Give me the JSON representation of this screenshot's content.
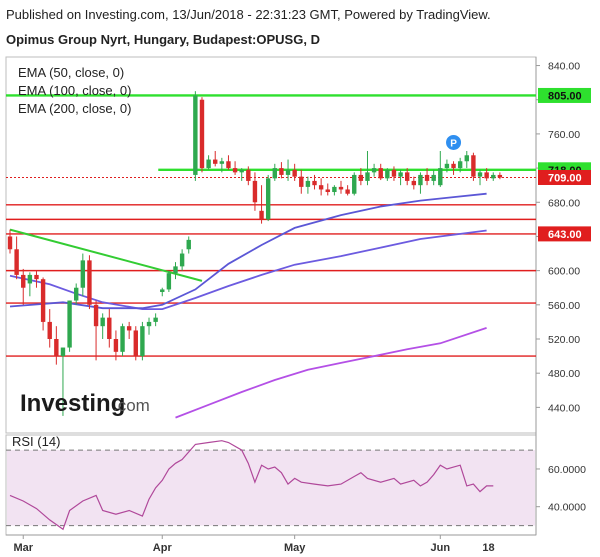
{
  "header": {
    "published": "Published on Investing.com, 13/Jun/2018 - 22:31:23 GMT, Powered by TradingView.",
    "title": "Opimus Group Nyrt, Hungary, Budapest:OPUSG, D"
  },
  "legend": [
    "EMA (50, close, 0)",
    "EMA (100, close, 0)",
    "EMA (200, close, 0)"
  ],
  "logo": {
    "text": "Investing",
    "suffix": ".com"
  },
  "marker": {
    "label": "P"
  },
  "colors": {
    "up": "#2fa84f",
    "down": "#d92b2b",
    "ema50": "#5b57d6",
    "ema100": "#6c5be0",
    "ema200": "#b450e6",
    "hline_green": "#2ee02e",
    "hline_red": "#e01e1e",
    "trend": "#33cc33",
    "rsi": "#b0489a",
    "rsi_fill": "#f2e3f2"
  },
  "chart_data": [
    {
      "type": "candlestick",
      "title": "Opimus Group Nyrt, Hungary, Budapest:OPUSG, D",
      "y_ticks": [
        840,
        800,
        760,
        720,
        680,
        640,
        600,
        560,
        520,
        480,
        440
      ],
      "y_tick_labels": [
        "840.00",
        "",
        "760.00",
        "",
        "680.00",
        "",
        "600.00",
        "560.00",
        "520.00",
        "480.00",
        "440.00"
      ],
      "ylim": [
        410,
        850
      ],
      "x_labels": [
        {
          "label": "Mar",
          "index": 2
        },
        {
          "label": "Apr",
          "index": 23
        },
        {
          "label": "May",
          "index": 43
        },
        {
          "label": "Jun",
          "index": 65
        }
      ],
      "x_range": [
        0,
        75
      ],
      "price_badges": [
        {
          "value": 805,
          "label": "805.00",
          "color": "green"
        },
        {
          "value": 718,
          "label": "718.00",
          "color": "green"
        },
        {
          "value": 709,
          "label": "709.00",
          "color": "red"
        },
        {
          "value": 643,
          "label": "643.00",
          "color": "red"
        }
      ],
      "horizontal_lines": [
        {
          "value": 805,
          "color": "green",
          "from": 0
        },
        {
          "value": 718,
          "color": "green",
          "from": 23
        },
        {
          "value": 677,
          "color": "red",
          "from": 0
        },
        {
          "value": 660,
          "color": "red",
          "from": 0
        },
        {
          "value": 643,
          "color": "red",
          "from": 0
        },
        {
          "value": 600,
          "color": "red",
          "from": 0
        },
        {
          "value": 562,
          "color": "red",
          "from": 0
        },
        {
          "value": 500,
          "color": "red",
          "from": 0
        }
      ],
      "last_price_line": 709,
      "trendline": [
        [
          0,
          648
        ],
        [
          29,
          588
        ]
      ],
      "marker_at": {
        "index": 67,
        "value": 750
      },
      "candles": [
        [
          640,
          648,
          620,
          625
        ],
        [
          625,
          640,
          590,
          595
        ],
        [
          595,
          602,
          560,
          580
        ],
        [
          585,
          598,
          570,
          595
        ],
        [
          595,
          600,
          580,
          590
        ],
        [
          590,
          592,
          530,
          540
        ],
        [
          540,
          555,
          510,
          520
        ],
        [
          520,
          535,
          490,
          500
        ],
        [
          500,
          510,
          430,
          510
        ],
        [
          510,
          565,
          505,
          565
        ],
        [
          565,
          585,
          560,
          580
        ],
        [
          580,
          620,
          570,
          612
        ],
        [
          612,
          618,
          555,
          560
        ],
        [
          560,
          565,
          495,
          535
        ],
        [
          535,
          550,
          520,
          545
        ],
        [
          545,
          555,
          510,
          520
        ],
        [
          520,
          530,
          495,
          505
        ],
        [
          505,
          538,
          500,
          535
        ],
        [
          535,
          540,
          520,
          530
        ],
        [
          530,
          535,
          495,
          500
        ],
        [
          500,
          540,
          495,
          535
        ],
        [
          535,
          545,
          525,
          540
        ],
        [
          540,
          550,
          535,
          545
        ],
        [
          575,
          580,
          570,
          578
        ],
        [
          578,
          600,
          575,
          597
        ],
        [
          597,
          610,
          590,
          605
        ],
        [
          605,
          625,
          600,
          620
        ],
        [
          625,
          640,
          620,
          636
        ],
        [
          712,
          810,
          705,
          805
        ],
        [
          800,
          803,
          715,
          720
        ],
        [
          720,
          735,
          718,
          730
        ],
        [
          730,
          740,
          722,
          725
        ],
        [
          725,
          732,
          715,
          728
        ],
        [
          728,
          735,
          718,
          720
        ],
        [
          720,
          728,
          712,
          715
        ],
        [
          715,
          720,
          705,
          718
        ],
        [
          718,
          722,
          700,
          705
        ],
        [
          705,
          715,
          670,
          680
        ],
        [
          670,
          700,
          655,
          660
        ],
        [
          660,
          712,
          658,
          708
        ],
        [
          708,
          725,
          705,
          720
        ],
        [
          720,
          727,
          708,
          712
        ],
        [
          712,
          730,
          705,
          718
        ],
        [
          718,
          725,
          705,
          710
        ],
        [
          710,
          718,
          690,
          698
        ],
        [
          698,
          710,
          690,
          705
        ],
        [
          705,
          712,
          695,
          700
        ],
        [
          700,
          708,
          688,
          695
        ],
        [
          695,
          702,
          688,
          692
        ],
        [
          692,
          700,
          688,
          698
        ],
        [
          698,
          705,
          690,
          695
        ],
        [
          695,
          700,
          688,
          690
        ],
        [
          690,
          715,
          688,
          712
        ],
        [
          712,
          720,
          700,
          705
        ],
        [
          705,
          740,
          700,
          715
        ],
        [
          715,
          725,
          710,
          720
        ],
        [
          720,
          725,
          706,
          708
        ],
        [
          708,
          720,
          705,
          718
        ],
        [
          718,
          722,
          705,
          710
        ],
        [
          710,
          718,
          700,
          715
        ],
        [
          715,
          720,
          700,
          705
        ],
        [
          705,
          710,
          695,
          700
        ],
        [
          700,
          715,
          690,
          712
        ],
        [
          712,
          720,
          700,
          705
        ],
        [
          705,
          718,
          700,
          712
        ],
        [
          700,
          740,
          698,
          720
        ],
        [
          720,
          730,
          715,
          725
        ],
        [
          725,
          728,
          712,
          720
        ],
        [
          720,
          732,
          715,
          728
        ],
        [
          728,
          740,
          720,
          735
        ],
        [
          735,
          738,
          705,
          710
        ],
        [
          710,
          718,
          700,
          715
        ],
        [
          715,
          720,
          705,
          708
        ],
        [
          708,
          715,
          705,
          712
        ],
        [
          712,
          715,
          707,
          709
        ]
      ],
      "ema50": [
        [
          0,
          558
        ],
        [
          8,
          563
        ],
        [
          14,
          556
        ],
        [
          20,
          556
        ],
        [
          23,
          560
        ],
        [
          28,
          578
        ],
        [
          33,
          608
        ],
        [
          38,
          630
        ],
        [
          43,
          650
        ],
        [
          50,
          665
        ],
        [
          56,
          675
        ],
        [
          62,
          682
        ],
        [
          67,
          686
        ],
        [
          72,
          690
        ]
      ],
      "ema100": [
        [
          0,
          594
        ],
        [
          6,
          584
        ],
        [
          10,
          573
        ],
        [
          14,
          563
        ],
        [
          20,
          555
        ],
        [
          23,
          555
        ],
        [
          28,
          568
        ],
        [
          33,
          582
        ],
        [
          38,
          595
        ],
        [
          43,
          607
        ],
        [
          50,
          617
        ],
        [
          56,
          627
        ],
        [
          62,
          637
        ],
        [
          72,
          647
        ]
      ],
      "ema200": [
        [
          25,
          428
        ],
        [
          30,
          443
        ],
        [
          35,
          458
        ],
        [
          40,
          472
        ],
        [
          45,
          484
        ],
        [
          50,
          492
        ],
        [
          55,
          500
        ],
        [
          60,
          508
        ],
        [
          65,
          515
        ],
        [
          72,
          533
        ]
      ]
    },
    {
      "type": "line",
      "title": "RSI (14)",
      "y_ticks": [
        60,
        40
      ],
      "y_tick_labels": [
        "60.0000",
        "40.0000"
      ],
      "ylim": [
        25,
        78
      ],
      "bands": [
        70,
        30
      ],
      "series": [
        {
          "values": [
            [
              0,
              46
            ],
            [
              2,
              43
            ],
            [
              4,
              39
            ],
            [
              6,
              33
            ],
            [
              8,
              28
            ],
            [
              9,
              38
            ],
            [
              11,
              43
            ],
            [
              13,
              46
            ],
            [
              14,
              38
            ],
            [
              16,
              36
            ],
            [
              18,
              38
            ],
            [
              20,
              35
            ],
            [
              21,
              44
            ],
            [
              22,
              50
            ],
            [
              23,
              54
            ],
            [
              24,
              60
            ],
            [
              25,
              63
            ],
            [
              26,
              65
            ],
            [
              27,
              69
            ],
            [
              28,
              73
            ],
            [
              30,
              74
            ],
            [
              32,
              75
            ],
            [
              33,
              74
            ],
            [
              35,
              70
            ],
            [
              36,
              63
            ],
            [
              37,
              53
            ],
            [
              38,
              62
            ],
            [
              39,
              60
            ],
            [
              40,
              61
            ],
            [
              41,
              58
            ],
            [
              42,
              52
            ],
            [
              43,
              55
            ],
            [
              44,
              53
            ],
            [
              46,
              52
            ],
            [
              48,
              51
            ],
            [
              50,
              52
            ],
            [
              52,
              56
            ],
            [
              53,
              58
            ],
            [
              54,
              55
            ],
            [
              56,
              53
            ],
            [
              58,
              55
            ],
            [
              59,
              52
            ],
            [
              61,
              54
            ],
            [
              62,
              51
            ],
            [
              63,
              53
            ],
            [
              64,
              57
            ],
            [
              65,
              62
            ],
            [
              66,
              60
            ],
            [
              67,
              61
            ],
            [
              68,
              62
            ],
            [
              69,
              51
            ],
            [
              70,
              52
            ],
            [
              71,
              48
            ],
            [
              72,
              51
            ],
            [
              73,
              51
            ]
          ]
        }
      ]
    }
  ]
}
